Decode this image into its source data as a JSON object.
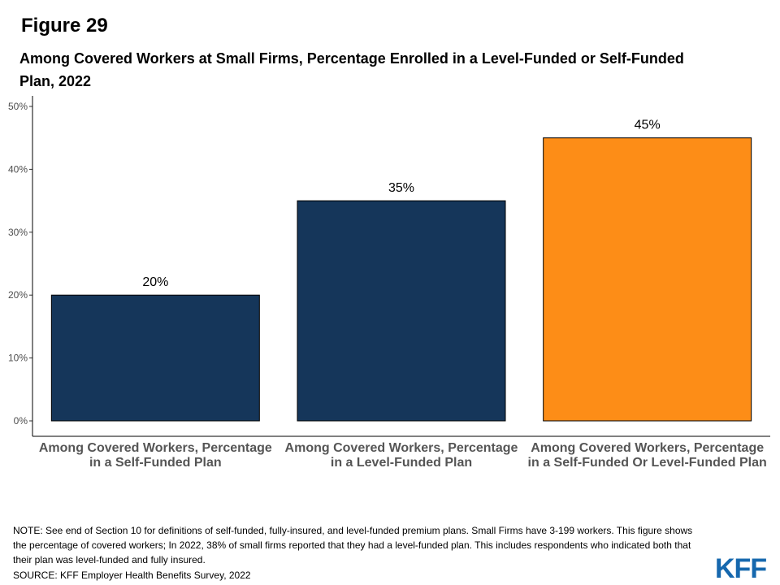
{
  "figure_label": "Figure 29",
  "chart_data": {
    "type": "bar",
    "title": "Among Covered Workers at Small Firms, Percentage Enrolled in a Level-Funded or Self-Funded Plan, 2022",
    "categories": [
      "Among Covered Workers, Percentage in a Self-Funded Plan",
      "Among Covered Workers, Percentage in a Level-Funded Plan",
      "Among Covered Workers, Percentage in a Self-Funded Or Level-Funded Plan"
    ],
    "values": [
      20,
      35,
      45
    ],
    "data_labels": [
      "20%",
      "35%",
      "45%"
    ],
    "bar_colors": [
      "#15365a",
      "#15365a",
      "#fd8d17"
    ],
    "ylim": [
      0,
      50
    ],
    "yticks": [
      0,
      10,
      20,
      30,
      40,
      50
    ],
    "ytick_labels": [
      "0%",
      "10%",
      "20%",
      "30%",
      "40%",
      "50%"
    ],
    "xlabel": "",
    "ylabel": "",
    "grid": false
  },
  "note": "NOTE: See end of Section 10 for definitions of self-funded, fully-insured, and level-funded premium plans. Small Firms have 3-199 workers. This figure shows the percentage of covered workers; In 2022, 38% of small firms reported that they had a level-funded plan. This includes respondents who indicated both that their plan was level-funded and fully insured.",
  "source": "SOURCE: KFF Employer Health Benefits Survey, 2022",
  "logo_text": "KFF",
  "colors": {
    "logo": "#1668ae",
    "axis": "#000000"
  }
}
